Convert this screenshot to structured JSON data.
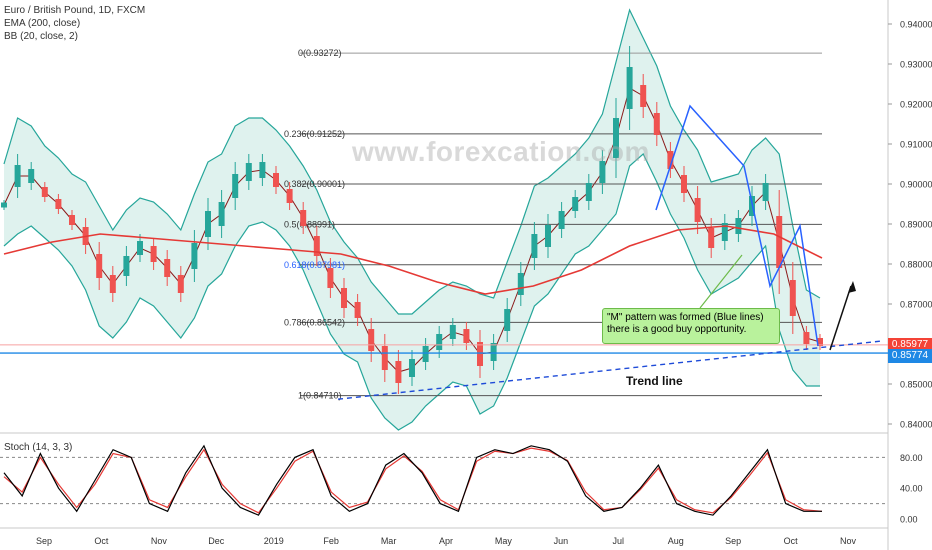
{
  "legend": {
    "symbol": "Euro / British Pound, 1D, FXCM",
    "ema": "EMA (200, close)",
    "bb": "BB (20, close, 2)"
  },
  "stoch_label": "Stoch (14, 3, 3)",
  "watermark": "www.forexcation.com",
  "callout": {
    "line1": "\"M\" pattern was formed (Blue lines)",
    "line2": "there is a good buy opportunity."
  },
  "trend_label": "Trend line",
  "price_tags": {
    "last": "0.85977",
    "support": "0.85774"
  },
  "colors": {
    "bb_band": "#26a69a",
    "bb_fill": "#dff2ee",
    "ema": "#e53935",
    "basis": "#8b1a1a",
    "bull": "#26a69a",
    "bear": "#ef5350",
    "pattern": "#2962ff",
    "support": "#1e88e5",
    "last_tag": "#f44336",
    "stoch_k": "#000000",
    "stoch_d": "#e53935"
  },
  "chart_data": {
    "type": "line",
    "ylim": [
      0.838,
      0.946
    ],
    "y_ticks": [
      "0.94000",
      "0.93000",
      "0.92000",
      "0.91000",
      "0.90000",
      "0.89000",
      "0.88000",
      "0.87000",
      "0.86000",
      "0.85000",
      "0.84000"
    ],
    "x_ticks": [
      "Sep",
      "Oct",
      "Nov",
      "Dec",
      "2019",
      "Feb",
      "Mar",
      "Apr",
      "May",
      "Jun",
      "Jul",
      "Aug",
      "Sep",
      "Oct",
      "Nov"
    ],
    "fib_levels": [
      {
        "label": "0(0.93272)",
        "value": 0.93272
      },
      {
        "label": "0.236(0.91252)",
        "value": 0.91252
      },
      {
        "label": "0.382(0.90001)",
        "value": 0.90001
      },
      {
        "label": "0.5(0.88991)",
        "value": 0.88991
      },
      {
        "label": "0.618(0.87981)",
        "value": 0.87981
      },
      {
        "label": "0.786(0.86542)",
        "value": 0.86542
      },
      {
        "label": "1(0.84710)",
        "value": 0.8471
      }
    ],
    "support_level": 0.85774,
    "last_price": 0.85977,
    "price_path": [
      [
        0.8935,
        0.896
      ],
      [
        0.8965,
        0.9075
      ],
      [
        0.8985,
        0.9055
      ],
      [
        0.8955,
        0.9005
      ],
      [
        0.8925,
        0.8975
      ],
      [
        0.8885,
        0.8935
      ],
      [
        0.8825,
        0.8915
      ],
      [
        0.8735,
        0.8855
      ],
      [
        0.8705,
        0.8795
      ],
      [
        0.8745,
        0.8845
      ],
      [
        0.8805,
        0.8875
      ],
      [
        0.8785,
        0.8865
      ],
      [
        0.8745,
        0.8835
      ],
      [
        0.8705,
        0.8795
      ],
      [
        0.8755,
        0.8885
      ],
      [
        0.8835,
        0.8965
      ],
      [
        0.8865,
        0.8985
      ],
      [
        0.8935,
        0.9055
      ],
      [
        0.8985,
        0.9075
      ],
      [
        0.8995,
        0.9075
      ],
      [
        0.8975,
        0.9045
      ],
      [
        0.8935,
        0.9005
      ],
      [
        0.8875,
        0.8955
      ],
      [
        0.8795,
        0.8895
      ],
      [
        0.8715,
        0.8815
      ],
      [
        0.8665,
        0.8765
      ],
      [
        0.8645,
        0.8725
      ],
      [
        0.8555,
        0.8665
      ],
      [
        0.8505,
        0.8625
      ],
      [
        0.8475,
        0.8585
      ],
      [
        0.8495,
        0.8585
      ],
      [
        0.8535,
        0.8615
      ],
      [
        0.8565,
        0.8645
      ],
      [
        0.8595,
        0.8665
      ],
      [
        0.8585,
        0.8655
      ],
      [
        0.8515,
        0.8635
      ],
      [
        0.8535,
        0.8625
      ],
      [
        0.8605,
        0.8715
      ],
      [
        0.8695,
        0.8805
      ],
      [
        0.8785,
        0.8905
      ],
      [
        0.8815,
        0.8925
      ],
      [
        0.8865,
        0.8955
      ],
      [
        0.8915,
        0.8985
      ],
      [
        0.8935,
        0.9025
      ],
      [
        0.8975,
        0.9085
      ],
      [
        0.9015,
        0.9215
      ],
      [
        0.9135,
        0.9345
      ],
      [
        0.9165,
        0.9275
      ],
      [
        0.9095,
        0.9205
      ],
      [
        0.9015,
        0.9105
      ],
      [
        0.8955,
        0.9045
      ],
      [
        0.8875,
        0.8995
      ],
      [
        0.8815,
        0.8915
      ],
      [
        0.8835,
        0.8925
      ],
      [
        0.8855,
        0.8935
      ],
      [
        0.8895,
        0.8995
      ],
      [
        0.8935,
        0.9025
      ],
      [
        0.8725,
        0.8985
      ],
      [
        0.8625,
        0.8805
      ],
      [
        0.8585,
        0.8645
      ],
      [
        0.8585,
        0.8625
      ]
    ],
    "ema200_path": [
      0.8825,
      0.8855,
      0.8875,
      0.8865,
      0.8855,
      0.8845,
      0.8835,
      0.8825,
      0.8795,
      0.8755,
      0.8725,
      0.8745,
      0.8785,
      0.8845,
      0.8885,
      0.8895,
      0.8875,
      0.8815
    ],
    "pattern_points": [
      0.8935,
      0.9195,
      0.9045,
      0.8745,
      0.8895,
      0.8595
    ],
    "stoch": {
      "ylim": [
        0,
        100
      ],
      "ticks": [
        "80.00",
        "40.00",
        "0.00"
      ],
      "k": [
        60,
        30,
        85,
        40,
        10,
        50,
        90,
        80,
        20,
        10,
        60,
        95,
        40,
        15,
        5,
        45,
        80,
        90,
        30,
        10,
        20,
        70,
        85,
        60,
        20,
        10,
        80,
        90,
        85,
        95,
        90,
        75,
        30,
        10,
        15,
        40,
        70,
        20,
        10,
        5,
        30,
        60,
        90,
        20,
        10,
        10
      ],
      "d": [
        55,
        35,
        80,
        45,
        15,
        45,
        85,
        80,
        25,
        15,
        55,
        90,
        45,
        20,
        8,
        40,
        75,
        88,
        35,
        15,
        22,
        65,
        82,
        62,
        25,
        12,
        75,
        88,
        85,
        92,
        88,
        76,
        35,
        12,
        15,
        38,
        66,
        25,
        12,
        8,
        28,
        56,
        86,
        25,
        12,
        10
      ]
    }
  }
}
